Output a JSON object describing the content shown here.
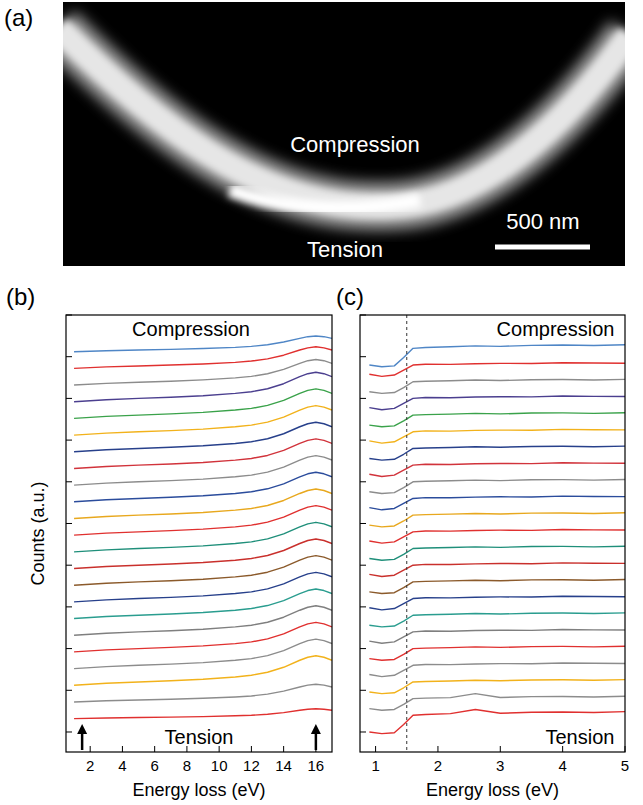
{
  "chart_data": [
    {
      "type": "image",
      "panel_label": "(a)",
      "annotations": [
        "Compression",
        "Tension"
      ],
      "scale_bar_label": "500 nm"
    },
    {
      "type": "line",
      "panel_label": "(b)",
      "x_label": "Energy loss (eV)",
      "y_label": "Counts (a.u.)",
      "annotations": [
        "Compression",
        "Tension"
      ],
      "x": [
        1,
        3,
        5,
        7,
        9,
        11,
        12,
        13,
        14,
        15,
        15.5,
        16,
        16.5,
        17
      ],
      "xlim": [
        0.5,
        17
      ],
      "xticks": [
        2,
        4,
        6,
        8,
        10,
        12,
        14,
        16
      ],
      "ylim": [
        -1.2,
        25
      ],
      "yticks": [
        0,
        2.5,
        5,
        7.5,
        10,
        12.5,
        15,
        17.5,
        20,
        22.5,
        25
      ],
      "tick_labels": "x",
      "arrows_x": [
        1.5,
        16
      ],
      "series": [
        {
          "color": "#e0302f",
          "values": [
            0.8,
            0.84,
            0.87,
            0.89,
            0.92,
            0.97,
            1.0,
            1.06,
            1.16,
            1.3,
            1.36,
            1.39,
            1.36,
            1.3
          ]
        },
        {
          "color": "#8c8c8c",
          "values": [
            1.8,
            1.87,
            1.92,
            1.96,
            2.02,
            2.1,
            2.16,
            2.27,
            2.45,
            2.7,
            2.81,
            2.86,
            2.81,
            2.7
          ]
        },
        {
          "color": "#f2b21b",
          "values": [
            2.8,
            2.92,
            3.0,
            3.07,
            3.16,
            3.3,
            3.4,
            3.58,
            3.88,
            4.3,
            4.48,
            4.57,
            4.48,
            4.3
          ]
        },
        {
          "color": "#8c8c8c",
          "values": [
            3.8,
            3.92,
            4.0,
            4.07,
            4.16,
            4.3,
            4.4,
            4.58,
            4.88,
            5.3,
            5.48,
            5.57,
            5.48,
            5.3
          ]
        },
        {
          "color": "#e0302f",
          "values": [
            4.8,
            4.92,
            5.0,
            5.07,
            5.16,
            5.3,
            5.4,
            5.58,
            5.88,
            6.3,
            6.48,
            6.57,
            6.48,
            6.3
          ]
        },
        {
          "color": "#7f7f7f",
          "values": [
            5.8,
            5.92,
            6.0,
            6.07,
            6.16,
            6.3,
            6.4,
            6.58,
            6.88,
            7.3,
            7.48,
            7.57,
            7.48,
            7.3
          ]
        },
        {
          "color": "#2a9d8f",
          "values": [
            6.8,
            6.92,
            7.0,
            7.07,
            7.16,
            7.3,
            7.4,
            7.58,
            7.88,
            8.3,
            8.48,
            8.57,
            8.48,
            8.3
          ]
        },
        {
          "color": "#27408b",
          "values": [
            7.8,
            7.92,
            8.0,
            8.07,
            8.16,
            8.3,
            8.4,
            8.58,
            8.88,
            9.3,
            9.48,
            9.57,
            9.48,
            9.3
          ]
        },
        {
          "color": "#8b5a2b",
          "values": [
            8.8,
            8.92,
            9.0,
            9.07,
            9.16,
            9.3,
            9.4,
            9.58,
            9.88,
            10.3,
            10.48,
            10.57,
            10.48,
            10.3
          ]
        },
        {
          "color": "#c9302c",
          "values": [
            9.8,
            9.92,
            10.0,
            10.07,
            10.16,
            10.3,
            10.4,
            10.58,
            10.88,
            11.3,
            11.48,
            11.57,
            11.48,
            11.3
          ]
        },
        {
          "color": "#1f8f7a",
          "values": [
            10.8,
            10.92,
            11.0,
            11.07,
            11.16,
            11.3,
            11.4,
            11.58,
            11.88,
            12.3,
            12.48,
            12.57,
            12.48,
            12.3
          ]
        },
        {
          "color": "#e0302f",
          "values": [
            11.8,
            11.92,
            12.0,
            12.07,
            12.16,
            12.3,
            12.4,
            12.58,
            12.88,
            13.3,
            13.48,
            13.57,
            13.48,
            13.3
          ]
        },
        {
          "color": "#e8a81e",
          "values": [
            12.8,
            12.92,
            13.0,
            13.07,
            13.16,
            13.3,
            13.4,
            13.58,
            13.88,
            14.3,
            14.48,
            14.57,
            14.48,
            14.3
          ]
        },
        {
          "color": "#2b4c9c",
          "values": [
            13.8,
            13.92,
            14.0,
            14.07,
            14.16,
            14.3,
            14.4,
            14.58,
            14.88,
            15.3,
            15.48,
            15.57,
            15.48,
            15.3
          ]
        },
        {
          "color": "#8c8c8c",
          "values": [
            14.8,
            14.92,
            15.0,
            15.07,
            15.16,
            15.3,
            15.4,
            15.58,
            15.88,
            16.3,
            16.48,
            16.57,
            16.48,
            16.3
          ]
        },
        {
          "color": "#d1333b",
          "values": [
            15.8,
            15.92,
            16.0,
            16.07,
            16.16,
            16.3,
            16.4,
            16.58,
            16.88,
            17.3,
            17.48,
            17.57,
            17.48,
            17.3
          ]
        },
        {
          "color": "#27408b",
          "values": [
            16.8,
            16.92,
            17.0,
            17.07,
            17.16,
            17.3,
            17.4,
            17.58,
            17.88,
            18.3,
            18.48,
            18.57,
            18.48,
            18.3
          ]
        },
        {
          "color": "#f2b21b",
          "values": [
            17.8,
            17.92,
            18.0,
            18.07,
            18.16,
            18.3,
            18.4,
            18.58,
            18.88,
            19.3,
            19.48,
            19.57,
            19.48,
            19.3
          ]
        },
        {
          "color": "#3aa24a",
          "values": [
            18.8,
            18.92,
            19.0,
            19.07,
            19.16,
            19.3,
            19.4,
            19.58,
            19.88,
            20.3,
            20.48,
            20.57,
            20.48,
            20.3
          ]
        },
        {
          "color": "#4b3f8f",
          "values": [
            19.8,
            19.92,
            20.0,
            20.07,
            20.16,
            20.3,
            20.4,
            20.58,
            20.88,
            21.3,
            21.48,
            21.57,
            21.48,
            21.3
          ]
        },
        {
          "color": "#8c8c8c",
          "values": [
            20.8,
            20.9,
            20.97,
            21.03,
            21.11,
            21.23,
            21.32,
            21.48,
            21.74,
            22.1,
            22.26,
            22.33,
            22.26,
            22.1
          ]
        },
        {
          "color": "#e0302f",
          "values": [
            21.8,
            21.89,
            21.94,
            22.0,
            22.06,
            22.16,
            22.24,
            22.37,
            22.59,
            22.9,
            23.03,
            23.1,
            23.03,
            22.9
          ]
        },
        {
          "color": "#4f86c6",
          "values": [
            22.8,
            22.86,
            22.9,
            22.94,
            22.99,
            23.06,
            23.12,
            23.22,
            23.38,
            23.6,
            23.7,
            23.74,
            23.7,
            23.6
          ]
        }
      ]
    },
    {
      "type": "line",
      "panel_label": "(c)",
      "x_label": "Energy loss (eV)",
      "annotations": [
        "Compression",
        "Tension"
      ],
      "x": [
        0.9,
        1.1,
        1.3,
        1.45,
        1.6,
        1.8,
        2.2,
        2.6,
        3,
        3.5,
        4,
        4.5,
        5
      ],
      "xlim": [
        0.75,
        5
      ],
      "xticks": [
        1,
        2,
        3,
        4,
        5
      ],
      "ylim": [
        -1.2,
        25
      ],
      "yticks": [
        0,
        2.5,
        5,
        7.5,
        10,
        12.5,
        15,
        17.5,
        20,
        22.5,
        25
      ],
      "tick_labels": "x",
      "vlines": [
        1.5
      ],
      "series": [
        {
          "color": "#e0302f",
          "values": [
            0.0,
            -0.1,
            -0.05,
            0.45,
            1.0,
            1.05,
            1.1,
            1.35,
            1.12,
            1.18,
            1.2,
            1.17,
            1.22
          ]
        },
        {
          "color": "#8c8c8c",
          "values": [
            1.4,
            1.3,
            1.35,
            1.65,
            2.0,
            2.03,
            2.06,
            2.3,
            2.07,
            2.12,
            2.13,
            2.1,
            2.14
          ]
        },
        {
          "color": "#f2b21b",
          "values": [
            2.4,
            2.3,
            2.35,
            2.65,
            3.0,
            3.03,
            3.06,
            3.1,
            3.07,
            3.12,
            3.13,
            3.1,
            3.14
          ]
        },
        {
          "color": "#8c8c8c",
          "values": [
            3.45,
            3.32,
            3.4,
            3.7,
            4.0,
            4.05,
            4.04,
            4.08,
            4.1,
            4.09,
            4.14,
            4.12,
            4.11
          ]
        },
        {
          "color": "#e0302f",
          "values": [
            4.4,
            4.3,
            4.35,
            4.65,
            5.0,
            5.03,
            5.06,
            5.1,
            5.07,
            5.12,
            5.13,
            5.1,
            5.14
          ]
        },
        {
          "color": "#7f7f7f",
          "values": [
            5.45,
            5.32,
            5.4,
            5.7,
            6.0,
            6.05,
            6.04,
            6.08,
            6.1,
            6.09,
            6.14,
            6.12,
            6.11
          ]
        },
        {
          "color": "#2a9d8f",
          "values": [
            6.4,
            6.3,
            6.35,
            6.65,
            7.0,
            7.03,
            7.06,
            7.1,
            7.07,
            7.12,
            7.13,
            7.1,
            7.14
          ]
        },
        {
          "color": "#27408b",
          "values": [
            7.45,
            7.32,
            7.4,
            7.7,
            8.0,
            8.05,
            8.04,
            8.08,
            8.1,
            8.09,
            8.14,
            8.12,
            8.11
          ]
        },
        {
          "color": "#8b5a2b",
          "values": [
            8.4,
            8.3,
            8.35,
            8.65,
            9.0,
            9.03,
            9.06,
            9.1,
            9.07,
            9.12,
            9.13,
            9.1,
            9.14
          ]
        },
        {
          "color": "#c9302c",
          "values": [
            9.45,
            9.32,
            9.4,
            9.7,
            10.0,
            10.05,
            10.04,
            10.08,
            10.1,
            10.09,
            10.14,
            10.12,
            10.11
          ]
        },
        {
          "color": "#1f8f7a",
          "values": [
            10.4,
            10.3,
            10.35,
            10.65,
            11.0,
            11.03,
            11.06,
            11.1,
            11.07,
            11.12,
            11.13,
            11.1,
            11.14
          ]
        },
        {
          "color": "#e0302f",
          "values": [
            11.45,
            11.32,
            11.4,
            11.7,
            12.0,
            12.05,
            12.04,
            12.08,
            12.1,
            12.09,
            12.14,
            12.12,
            12.11
          ]
        },
        {
          "color": "#e8a81e",
          "values": [
            12.4,
            12.3,
            12.35,
            12.65,
            13.0,
            13.03,
            13.06,
            13.1,
            13.07,
            13.12,
            13.13,
            13.1,
            13.14
          ]
        },
        {
          "color": "#2b4c9c",
          "values": [
            13.45,
            13.32,
            13.4,
            13.7,
            14.0,
            14.05,
            14.04,
            14.08,
            14.1,
            14.09,
            14.14,
            14.12,
            14.11
          ]
        },
        {
          "color": "#8c8c8c",
          "values": [
            14.4,
            14.3,
            14.35,
            14.65,
            15.0,
            15.03,
            15.06,
            15.1,
            15.07,
            15.12,
            15.13,
            15.1,
            15.14
          ]
        },
        {
          "color": "#d1333b",
          "values": [
            15.45,
            15.32,
            15.4,
            15.7,
            16.0,
            16.05,
            16.04,
            16.08,
            16.1,
            16.09,
            16.14,
            16.12,
            16.11
          ]
        },
        {
          "color": "#27408b",
          "values": [
            16.4,
            16.3,
            16.35,
            16.65,
            17.0,
            17.03,
            17.06,
            17.1,
            17.07,
            17.12,
            17.13,
            17.1,
            17.14
          ]
        },
        {
          "color": "#f2b21b",
          "values": [
            17.45,
            17.32,
            17.4,
            17.7,
            18.0,
            18.05,
            18.04,
            18.08,
            18.1,
            18.09,
            18.14,
            18.12,
            18.11
          ]
        },
        {
          "color": "#3aa24a",
          "values": [
            18.4,
            18.3,
            18.35,
            18.65,
            19.0,
            19.03,
            19.06,
            19.1,
            19.07,
            19.12,
            19.13,
            19.1,
            19.14
          ]
        },
        {
          "color": "#4b3f8f",
          "values": [
            19.45,
            19.32,
            19.4,
            19.7,
            20.0,
            20.05,
            20.04,
            20.08,
            20.1,
            20.09,
            20.14,
            20.12,
            20.11
          ]
        },
        {
          "color": "#8c8c8c",
          "values": [
            20.4,
            20.3,
            20.35,
            20.65,
            21.0,
            21.03,
            21.06,
            21.1,
            21.07,
            21.12,
            21.13,
            21.1,
            21.14
          ]
        },
        {
          "color": "#e0302f",
          "values": [
            21.45,
            21.32,
            21.4,
            21.7,
            22.0,
            22.05,
            22.04,
            22.08,
            22.1,
            22.09,
            22.14,
            22.12,
            22.11
          ]
        },
        {
          "color": "#4f86c6",
          "values": [
            22.0,
            21.9,
            21.95,
            22.45,
            23.0,
            23.05,
            23.1,
            23.15,
            23.12,
            23.18,
            23.2,
            23.17,
            23.22
          ]
        }
      ]
    }
  ]
}
